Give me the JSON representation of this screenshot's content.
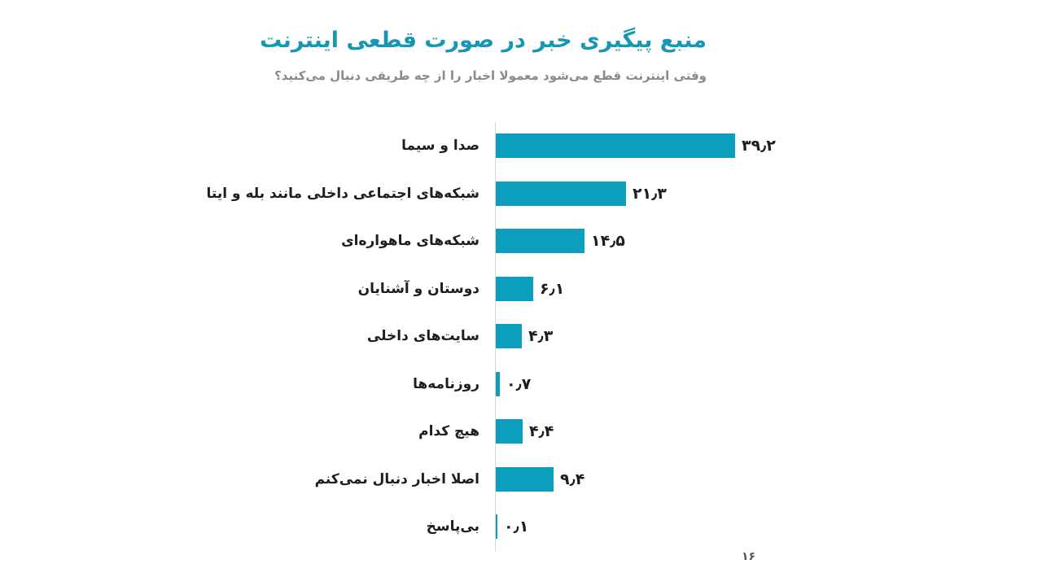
{
  "header": {
    "title": "منبع پیگیری خبر در صورت قطعی اینترنت",
    "subtitle": "وقتی اینترنت قطع می‌شود معمولا اخبار را از چه طریقی دنبال می‌کنید؟"
  },
  "footer": {
    "page_number": "۱۶"
  },
  "colors": {
    "bar": "#0c9fbd",
    "title": "#1897b4",
    "subtitle": "#8a8a8a",
    "text": "#1e1e1e"
  },
  "chart_data": {
    "type": "bar",
    "orientation": "horizontal",
    "categories": [
      "صدا و سیما",
      "شبکه‌های اجتماعی داخلی مانند بله و ایتا",
      "شبکه‌های ماهواره‌ای",
      "دوستان و آشنایان",
      "سایت‌های داخلی",
      "روزنامه‌ها",
      "هیچ کدام",
      "اصلا اخبار دنبال نمی‌کنم",
      "بی‌پاسخ"
    ],
    "values": [
      39.2,
      21.3,
      14.5,
      6.1,
      4.3,
      0.7,
      4.4,
      9.4,
      0.1
    ],
    "value_labels": [
      "۳۹٫۲",
      "۲۱٫۳",
      "۱۴٫۵",
      "۶٫۱",
      "۴٫۳",
      "۰٫۷",
      "۴٫۴",
      "۹٫۴",
      "۰٫۱"
    ],
    "xlim": [
      0,
      40
    ],
    "grid": false,
    "legend": "none"
  }
}
